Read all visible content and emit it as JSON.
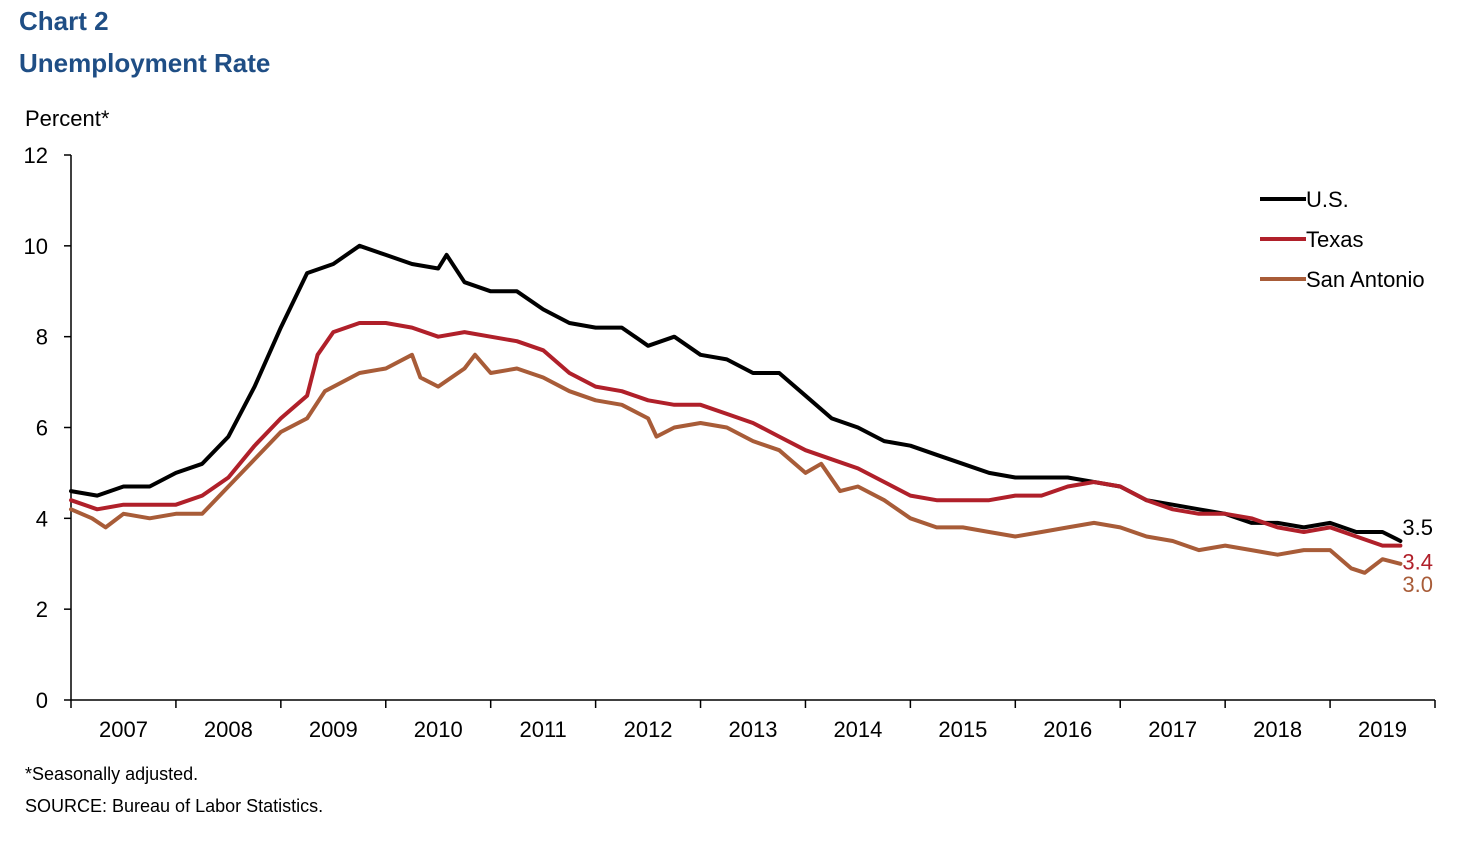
{
  "header": {
    "chart_label": "Chart 2",
    "title": "Unemployment Rate",
    "y_unit": "Percent*"
  },
  "footer": {
    "note": "*Seasonally adjusted.",
    "source": "SOURCE: Bureau of Labor Statistics."
  },
  "chart_data": {
    "type": "line",
    "title": "Unemployment Rate",
    "ylabel": "Percent*",
    "xlabel": "",
    "ylim": [
      0,
      12
    ],
    "yticks": [
      0,
      2,
      4,
      6,
      8,
      10,
      12
    ],
    "xlim": [
      2007.0,
      2020.0
    ],
    "year_labels": [
      "2007",
      "2008",
      "2009",
      "2010",
      "2011",
      "2012",
      "2013",
      "2014",
      "2015",
      "2016",
      "2017",
      "2018",
      "2019"
    ],
    "grid": false,
    "legend": "top-right",
    "colors": {
      "U.S.": "#000000",
      "Texas": "#b0202a",
      "San Antonio": "#a85c38"
    },
    "series": [
      {
        "name": "U.S.",
        "end_label": "3.5",
        "points": [
          [
            2007.0,
            4.6
          ],
          [
            2007.25,
            4.5
          ],
          [
            2007.5,
            4.7
          ],
          [
            2007.75,
            4.7
          ],
          [
            2008.0,
            5.0
          ],
          [
            2008.25,
            5.2
          ],
          [
            2008.5,
            5.8
          ],
          [
            2008.75,
            6.9
          ],
          [
            2009.0,
            8.2
          ],
          [
            2009.25,
            9.4
          ],
          [
            2009.5,
            9.6
          ],
          [
            2009.75,
            10.0
          ],
          [
            2010.0,
            9.8
          ],
          [
            2010.25,
            9.6
          ],
          [
            2010.5,
            9.5
          ],
          [
            2010.58,
            9.8
          ],
          [
            2010.75,
            9.2
          ],
          [
            2011.0,
            9.0
          ],
          [
            2011.25,
            9.0
          ],
          [
            2011.5,
            8.6
          ],
          [
            2011.75,
            8.3
          ],
          [
            2012.0,
            8.2
          ],
          [
            2012.25,
            8.2
          ],
          [
            2012.5,
            7.8
          ],
          [
            2012.75,
            8.0
          ],
          [
            2013.0,
            7.6
          ],
          [
            2013.25,
            7.5
          ],
          [
            2013.5,
            7.2
          ],
          [
            2013.75,
            7.2
          ],
          [
            2014.0,
            6.7
          ],
          [
            2014.25,
            6.2
          ],
          [
            2014.5,
            6.0
          ],
          [
            2014.75,
            5.7
          ],
          [
            2015.0,
            5.6
          ],
          [
            2015.25,
            5.4
          ],
          [
            2015.5,
            5.2
          ],
          [
            2015.75,
            5.0
          ],
          [
            2016.0,
            4.9
          ],
          [
            2016.25,
            4.9
          ],
          [
            2016.5,
            4.9
          ],
          [
            2016.75,
            4.8
          ],
          [
            2017.0,
            4.7
          ],
          [
            2017.25,
            4.4
          ],
          [
            2017.5,
            4.3
          ],
          [
            2017.75,
            4.2
          ],
          [
            2018.0,
            4.1
          ],
          [
            2018.25,
            3.9
          ],
          [
            2018.5,
            3.9
          ],
          [
            2018.75,
            3.8
          ],
          [
            2019.0,
            3.9
          ],
          [
            2019.25,
            3.7
          ],
          [
            2019.5,
            3.7
          ],
          [
            2019.67,
            3.5
          ]
        ]
      },
      {
        "name": "Texas",
        "end_label": "3.4",
        "points": [
          [
            2007.0,
            4.4
          ],
          [
            2007.25,
            4.2
          ],
          [
            2007.5,
            4.3
          ],
          [
            2007.75,
            4.3
          ],
          [
            2008.0,
            4.3
          ],
          [
            2008.25,
            4.5
          ],
          [
            2008.5,
            4.9
          ],
          [
            2008.75,
            5.6
          ],
          [
            2009.0,
            6.2
          ],
          [
            2009.25,
            6.7
          ],
          [
            2009.35,
            7.6
          ],
          [
            2009.5,
            8.1
          ],
          [
            2009.75,
            8.3
          ],
          [
            2010.0,
            8.3
          ],
          [
            2010.25,
            8.2
          ],
          [
            2010.5,
            8.0
          ],
          [
            2010.75,
            8.1
          ],
          [
            2011.0,
            8.0
          ],
          [
            2011.25,
            7.9
          ],
          [
            2011.5,
            7.7
          ],
          [
            2011.75,
            7.2
          ],
          [
            2012.0,
            6.9
          ],
          [
            2012.25,
            6.8
          ],
          [
            2012.5,
            6.6
          ],
          [
            2012.75,
            6.5
          ],
          [
            2013.0,
            6.5
          ],
          [
            2013.25,
            6.3
          ],
          [
            2013.5,
            6.1
          ],
          [
            2013.75,
            5.8
          ],
          [
            2014.0,
            5.5
          ],
          [
            2014.25,
            5.3
          ],
          [
            2014.5,
            5.1
          ],
          [
            2014.75,
            4.8
          ],
          [
            2015.0,
            4.5
          ],
          [
            2015.25,
            4.4
          ],
          [
            2015.5,
            4.4
          ],
          [
            2015.75,
            4.4
          ],
          [
            2016.0,
            4.5
          ],
          [
            2016.25,
            4.5
          ],
          [
            2016.5,
            4.7
          ],
          [
            2016.75,
            4.8
          ],
          [
            2017.0,
            4.7
          ],
          [
            2017.25,
            4.4
          ],
          [
            2017.5,
            4.2
          ],
          [
            2017.75,
            4.1
          ],
          [
            2018.0,
            4.1
          ],
          [
            2018.25,
            4.0
          ],
          [
            2018.5,
            3.8
          ],
          [
            2018.75,
            3.7
          ],
          [
            2019.0,
            3.8
          ],
          [
            2019.25,
            3.6
          ],
          [
            2019.5,
            3.4
          ],
          [
            2019.67,
            3.4
          ]
        ]
      },
      {
        "name": "San Antonio",
        "end_label": "3.0",
        "points": [
          [
            2007.0,
            4.2
          ],
          [
            2007.2,
            4.0
          ],
          [
            2007.33,
            3.8
          ],
          [
            2007.5,
            4.1
          ],
          [
            2007.75,
            4.0
          ],
          [
            2008.0,
            4.1
          ],
          [
            2008.25,
            4.1
          ],
          [
            2008.5,
            4.7
          ],
          [
            2008.75,
            5.3
          ],
          [
            2009.0,
            5.9
          ],
          [
            2009.25,
            6.2
          ],
          [
            2009.42,
            6.8
          ],
          [
            2009.75,
            7.2
          ],
          [
            2010.0,
            7.3
          ],
          [
            2010.25,
            7.6
          ],
          [
            2010.33,
            7.1
          ],
          [
            2010.5,
            6.9
          ],
          [
            2010.75,
            7.3
          ],
          [
            2010.85,
            7.6
          ],
          [
            2011.0,
            7.2
          ],
          [
            2011.25,
            7.3
          ],
          [
            2011.5,
            7.1
          ],
          [
            2011.75,
            6.8
          ],
          [
            2012.0,
            6.6
          ],
          [
            2012.25,
            6.5
          ],
          [
            2012.5,
            6.2
          ],
          [
            2012.58,
            5.8
          ],
          [
            2012.75,
            6.0
          ],
          [
            2013.0,
            6.1
          ],
          [
            2013.25,
            6.0
          ],
          [
            2013.5,
            5.7
          ],
          [
            2013.75,
            5.5
          ],
          [
            2014.0,
            5.0
          ],
          [
            2014.15,
            5.2
          ],
          [
            2014.33,
            4.6
          ],
          [
            2014.5,
            4.7
          ],
          [
            2014.75,
            4.4
          ],
          [
            2015.0,
            4.0
          ],
          [
            2015.25,
            3.8
          ],
          [
            2015.5,
            3.8
          ],
          [
            2015.75,
            3.7
          ],
          [
            2016.0,
            3.6
          ],
          [
            2016.25,
            3.7
          ],
          [
            2016.5,
            3.8
          ],
          [
            2016.75,
            3.9
          ],
          [
            2017.0,
            3.8
          ],
          [
            2017.25,
            3.6
          ],
          [
            2017.5,
            3.5
          ],
          [
            2017.75,
            3.3
          ],
          [
            2018.0,
            3.4
          ],
          [
            2018.25,
            3.3
          ],
          [
            2018.5,
            3.2
          ],
          [
            2018.75,
            3.3
          ],
          [
            2019.0,
            3.3
          ],
          [
            2019.2,
            2.9
          ],
          [
            2019.33,
            2.8
          ],
          [
            2019.5,
            3.1
          ],
          [
            2019.67,
            3.0
          ]
        ]
      }
    ]
  }
}
